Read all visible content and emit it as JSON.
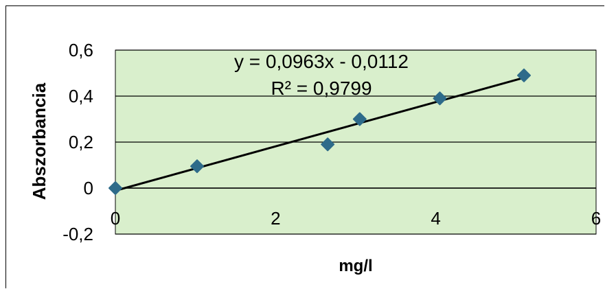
{
  "chart_data": {
    "type": "scatter",
    "xlabel": "mg/l",
    "ylabel": "Abszorbancia",
    "xlim": [
      0,
      6
    ],
    "ylim": [
      -0.2,
      0.6
    ],
    "x_ticks": [
      "0",
      "2",
      "4",
      "6"
    ],
    "y_ticks": [
      "-0,2",
      "0",
      "0,2",
      "0,4",
      "0,6"
    ],
    "grid": "horizontal",
    "plot_background": "#d9efcc",
    "marker_color": "#2e6b8a",
    "series": [
      {
        "x": [
          0,
          1.02,
          2.65,
          3.05,
          4.05,
          5.1
        ],
        "y": [
          0,
          0.095,
          0.19,
          0.3,
          0.39,
          0.49
        ]
      }
    ],
    "trendline": {
      "slope": 0.0963,
      "intercept": -0.0112,
      "x_range": [
        0,
        5.1
      ],
      "color": "#000000"
    },
    "annotations": {
      "equation": "y = 0,0963x - 0,0112",
      "r_squared": "R² = 0,9799"
    }
  }
}
